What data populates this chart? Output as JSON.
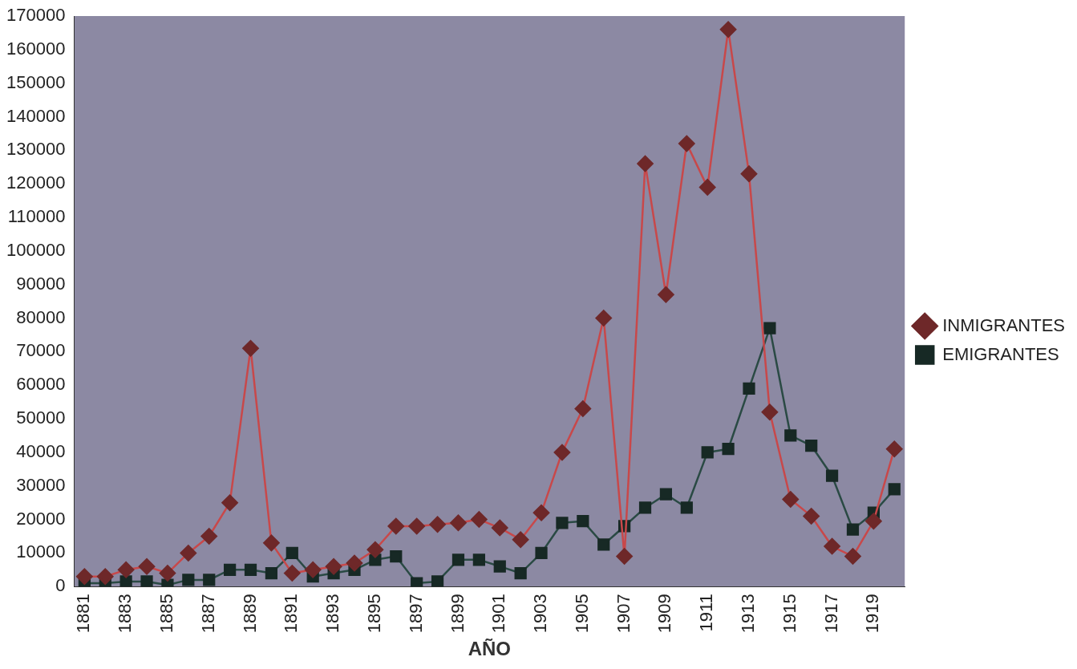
{
  "chart_data": {
    "type": "line",
    "xlabel": "AÑO",
    "categories": [
      "1881",
      null,
      "1883",
      null,
      "1885",
      null,
      "1887",
      null,
      "1889",
      null,
      "1891",
      null,
      "1893",
      null,
      "1895",
      null,
      "1897",
      null,
      "1899",
      null,
      "1901",
      null,
      "1903",
      null,
      "1905",
      null,
      "1907",
      null,
      "1909",
      null,
      "1911",
      null,
      "1913",
      null,
      "1915",
      null,
      "1917",
      null,
      "1919",
      null
    ],
    "series": [
      {
        "name": "INMIGRANTES",
        "color": "#c8484a",
        "marker": "diamond",
        "values": [
          3000,
          3000,
          5000,
          6000,
          4000,
          10000,
          15000,
          25000,
          71000,
          13000,
          4000,
          5000,
          6000,
          7000,
          11000,
          18000,
          18000,
          18500,
          19000,
          20000,
          17500,
          14000,
          22000,
          40000,
          53000,
          80000,
          9000,
          126000,
          87000,
          132000,
          119000,
          166000,
          123000,
          52000,
          26000,
          21000,
          12000,
          9000,
          19500,
          41000
        ]
      },
      {
        "name": "EMIGRANTES",
        "color": "#2a4a44",
        "marker": "square",
        "values": [
          1000,
          1000,
          1500,
          1500,
          500,
          2000,
          2000,
          5000,
          5000,
          4000,
          10000,
          3000,
          4000,
          5000,
          8000,
          9000,
          1000,
          1500,
          8000,
          8000,
          6000,
          4000,
          10000,
          19000,
          19500,
          12500,
          18000,
          23500,
          27500,
          23500,
          40000,
          41000,
          59000,
          77000,
          45000,
          42000,
          33000,
          17000,
          22000,
          29000
        ]
      }
    ],
    "ylim": [
      0,
      170000
    ],
    "yticks": [
      0,
      10000,
      20000,
      30000,
      40000,
      50000,
      60000,
      70000,
      80000,
      90000,
      100000,
      110000,
      120000,
      130000,
      140000,
      150000,
      160000,
      170000
    ],
    "grid": false,
    "legend": "right",
    "line_style": "solid"
  }
}
